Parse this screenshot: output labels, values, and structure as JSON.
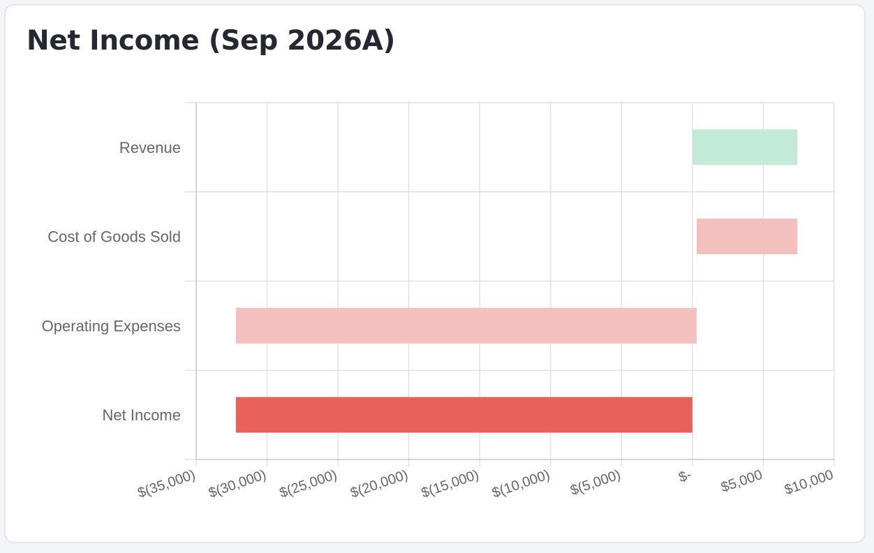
{
  "title": "Net Income (Sep 2026A)",
  "chart_data": {
    "type": "bar",
    "orientation": "horizontal",
    "style": "waterfall",
    "categories": [
      "Revenue",
      "Cost of Goods Sold",
      "Operating Expenses",
      "Net Income"
    ],
    "bars": [
      {
        "category": "Revenue",
        "start": 0,
        "end": 7400,
        "kind": "increase"
      },
      {
        "category": "Cost of Goods Sold",
        "start": 7400,
        "end": 300,
        "kind": "decrease"
      },
      {
        "category": "Operating Expenses",
        "start": 300,
        "end": -32200,
        "kind": "decrease"
      },
      {
        "category": "Net Income",
        "start": 0,
        "end": -32200,
        "kind": "total"
      }
    ],
    "xlim": [
      -35000,
      10000
    ],
    "xticks": [
      -35000,
      -30000,
      -25000,
      -20000,
      -15000,
      -10000,
      -5000,
      0,
      5000,
      10000
    ],
    "xtick_labels": [
      "$(35,000)",
      "$(30,000)",
      "$(25,000)",
      "$(20,000)",
      "$(15,000)",
      "$(10,000)",
      "$(5,000)",
      "$-",
      "$5,000",
      "$10,000"
    ],
    "grid": true,
    "legend": "none",
    "xlabel": "",
    "ylabel": "",
    "colors": {
      "increase": "#c2ead7",
      "decrease": "#f4c0bd",
      "total": "#e8615b",
      "grid": "#dcdcdc",
      "axis": "#c9c9c9"
    }
  }
}
